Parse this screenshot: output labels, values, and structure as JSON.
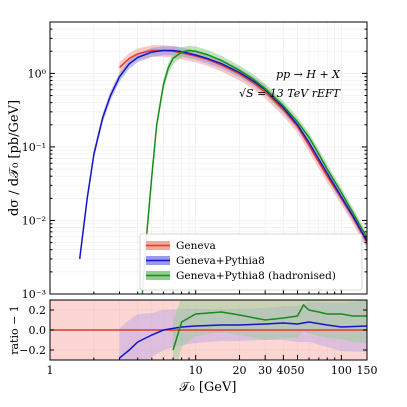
{
  "chart_data": [
    {
      "type": "line",
      "panel": "main",
      "ylabel": "dσ / d𝒯₀   [pb/GeV]",
      "yscale": "log",
      "xscale": "log",
      "xlim": [
        1,
        150
      ],
      "ylim": [
        0.001,
        5
      ],
      "x_ticks": [
        1,
        10,
        20,
        30,
        40,
        50,
        100,
        150
      ],
      "x_tick_labels": [
        "1",
        "10",
        "20",
        "30",
        "40",
        "50",
        "100",
        "150"
      ],
      "y_ticks": [
        0.001,
        0.01,
        0.1,
        1
      ],
      "y_tick_labels": [
        "10⁻³",
        "10⁻²",
        "10⁻¹",
        "10⁰"
      ],
      "annotations": [
        "pp → H + X",
        "√S = 13 TeV   rEFT"
      ],
      "grid": true,
      "legend": "bottom-right",
      "series": [
        {
          "name": "Geneva",
          "color": "#e8382a",
          "band_color": "#f7a59e",
          "x": [
            3.0,
            3.5,
            4.0,
            5.0,
            6.0,
            7.0,
            8.0,
            10.0,
            12.0,
            15.0,
            20.0,
            25.0,
            30.0,
            40.0,
            50.0,
            60.0,
            70.0,
            80.0,
            100.0,
            120.0,
            150.0
          ],
          "y": [
            1.2,
            1.6,
            1.85,
            2.05,
            2.05,
            2.0,
            1.9,
            1.72,
            1.55,
            1.3,
            0.98,
            0.74,
            0.56,
            0.32,
            0.19,
            0.105,
            0.062,
            0.04,
            0.02,
            0.011,
            0.005
          ]
        },
        {
          "name": "Geneva+Pythia8",
          "color": "#1515c8",
          "band_color": "#9a9ae8",
          "x": [
            1.6,
            1.8,
            2.0,
            2.3,
            2.6,
            3.0,
            3.5,
            4.0,
            5.0,
            6.0,
            7.0,
            8.0,
            10.0,
            12.0,
            15.0,
            20.0,
            25.0,
            30.0,
            40.0,
            50.0,
            60.0,
            70.0,
            80.0,
            100.0,
            120.0,
            150.0
          ],
          "y": [
            0.003,
            0.02,
            0.08,
            0.25,
            0.5,
            0.9,
            1.35,
            1.65,
            1.95,
            2.05,
            2.05,
            1.98,
            1.78,
            1.6,
            1.36,
            1.03,
            0.78,
            0.6,
            0.34,
            0.2,
            0.115,
            0.068,
            0.044,
            0.021,
            0.0115,
            0.0052
          ]
        },
        {
          "name": "Geneva+Pythia8 (hadronised)",
          "color": "#1a8a1a",
          "band_color": "#8fd08f",
          "x": [
            4.3,
            4.6,
            5.0,
            5.4,
            6.0,
            6.5,
            7.0,
            8.0,
            9.0,
            10.0,
            12.0,
            15.0,
            20.0,
            25.0,
            30.0,
            40.0,
            50.0,
            60.0,
            70.0,
            80.0,
            100.0,
            120.0,
            150.0
          ],
          "y": [
            0.001,
            0.006,
            0.04,
            0.2,
            0.7,
            1.2,
            1.6,
            1.95,
            2.05,
            2.0,
            1.8,
            1.5,
            1.1,
            0.83,
            0.62,
            0.36,
            0.22,
            0.135,
            0.08,
            0.05,
            0.024,
            0.0128,
            0.0058
          ]
        }
      ]
    },
    {
      "type": "line",
      "panel": "ratio",
      "xlabel": "𝒯₀   [GeV]",
      "ylabel": "ratio − 1",
      "xscale": "log",
      "xlim": [
        1,
        150
      ],
      "ylim": [
        -0.3,
        0.3
      ],
      "y_ticks": [
        -0.2,
        0.0,
        0.2
      ],
      "y_tick_labels": [
        "−0.2",
        "0.0",
        "0.2"
      ],
      "grid": true,
      "series": [
        {
          "name": "Geneva",
          "color": "#e8382a",
          "x": [
            1,
            150
          ],
          "y": [
            0.0,
            0.0
          ],
          "band": [
            0.3,
            0.3
          ]
        },
        {
          "name": "Geneva+Pythia8",
          "color": "#1515c8",
          "x": [
            3.0,
            3.5,
            4.0,
            5.0,
            6.0,
            8.0,
            10.0,
            15.0,
            20.0,
            30.0,
            40.0,
            50.0,
            60.0,
            80.0,
            100.0,
            150.0
          ],
          "y": [
            -0.28,
            -0.2,
            -0.12,
            -0.05,
            0.0,
            0.03,
            0.04,
            0.05,
            0.05,
            0.06,
            0.07,
            0.06,
            0.08,
            0.05,
            0.03,
            0.04
          ],
          "band": [
            0.3,
            0.3,
            0.28,
            0.22,
            0.2,
            0.18,
            0.17,
            0.16,
            0.16,
            0.16,
            0.17,
            0.18,
            0.2,
            0.22,
            0.24,
            0.26
          ]
        },
        {
          "name": "Geneva+Pythia8 (hadronised)",
          "color": "#1a8a1a",
          "x": [
            7.0,
            8.0,
            10.0,
            15.0,
            20.0,
            30.0,
            40.0,
            50.0,
            55.0,
            60.0,
            70.0,
            80.0,
            100.0,
            120.0,
            150.0
          ],
          "y": [
            -0.2,
            0.08,
            0.16,
            0.18,
            0.15,
            0.1,
            0.12,
            0.14,
            0.25,
            0.2,
            0.18,
            0.16,
            0.16,
            0.14,
            0.14
          ],
          "band": [
            0.3,
            0.25,
            0.22,
            0.2,
            0.2,
            0.2,
            0.2,
            0.22,
            0.25,
            0.24,
            0.24,
            0.24,
            0.25,
            0.26,
            0.27
          ]
        }
      ]
    }
  ]
}
